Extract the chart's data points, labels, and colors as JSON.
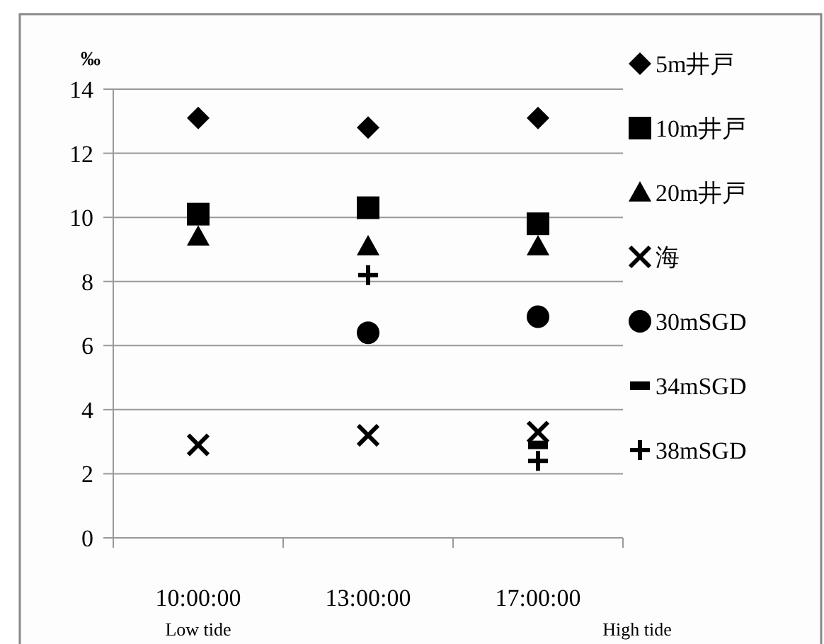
{
  "chart_data": {
    "type": "scatter",
    "ylabel": "‰",
    "categories": [
      "10:00:00",
      "13:00:00",
      "17:00:00"
    ],
    "annotations": [
      "Low tide",
      "High tide"
    ],
    "ylim": [
      0,
      14
    ],
    "yticks": [
      0,
      2,
      4,
      6,
      8,
      10,
      12,
      14
    ],
    "grid": "y",
    "legend": "right",
    "series": [
      {
        "name": "5m井戸",
        "color": "#000000",
        "marker": "diamond",
        "values": [
          13.1,
          12.8,
          13.1
        ]
      },
      {
        "name": "10m井戸",
        "color": "#000000",
        "marker": "square",
        "values": [
          10.1,
          10.3,
          9.8
        ]
      },
      {
        "name": "20m井戸",
        "color": "#000000",
        "marker": "triangle",
        "values": [
          9.4,
          9.1,
          9.1
        ]
      },
      {
        "name": "海",
        "color": "#000000",
        "marker": "cross",
        "values": [
          2.9,
          3.2,
          3.3
        ]
      },
      {
        "name": "30mSGD",
        "color": "#000000",
        "marker": "circle",
        "values": [
          null,
          6.4,
          6.9
        ]
      },
      {
        "name": "34mSGD",
        "color": "#000000",
        "values": [
          null,
          null,
          2.9
        ]
      },
      {
        "name": "38mSGD",
        "color": "#000000",
        "marker": "plus",
        "values": [
          null,
          8.2,
          2.4
        ]
      }
    ]
  }
}
